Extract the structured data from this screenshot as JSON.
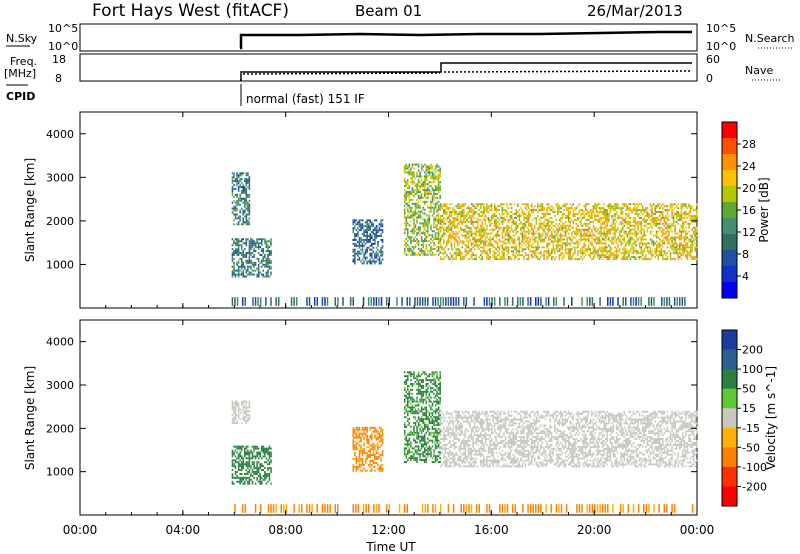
{
  "header": {
    "station": "Fort Hays West (fitACF)",
    "beam": "Beam 01",
    "date": "26/Mar/2013"
  },
  "top_panels": {
    "left_label_sky": "N.Sky",
    "left_ticks_sky": [
      "10^5",
      "10^0"
    ],
    "right_label_search": "N.Search",
    "right_ticks_search": [
      "10^5",
      "10^0"
    ],
    "left_label_freq_1": "Freq.",
    "left_label_freq_2": "[MHz]",
    "left_ticks_freq": [
      "18",
      "8"
    ],
    "right_label_nave": "Nave",
    "right_ticks_nave": [
      "60",
      "0"
    ],
    "cpid_label": "CPID",
    "cpid_text": "normal (fast) 151 IF"
  },
  "chart_data": [
    {
      "type": "heatmap",
      "title": "",
      "xlabel": "Time UT",
      "ylabel": "Slant Range [km]",
      "x_ticks": [
        "00:00",
        "04:00",
        "08:00",
        "12:00",
        "16:00",
        "20:00",
        "00:00"
      ],
      "y_ticks": [
        "1000",
        "2000",
        "3000",
        "4000"
      ],
      "ylim": [
        0,
        4500
      ],
      "colorbar_label": "Power [dB]",
      "colorbar_ticks": [
        "28",
        "24",
        "20",
        "16",
        "12",
        "8",
        "4"
      ],
      "colorbar_colors": [
        "#ff0000",
        "#ff5000",
        "#ff9000",
        "#ffc000",
        "#b0c800",
        "#60a830",
        "#409070",
        "#307060",
        "#2050a0",
        "#1030c8",
        "#0000ff"
      ],
      "echo_regions": [
        {
          "t_start": 5.9,
          "t_end": 7.4,
          "r_low": 700,
          "r_high": 1600,
          "level_db": 8
        },
        {
          "t_start": 5.9,
          "t_end": 6.6,
          "r_low": 1900,
          "r_high": 3100,
          "level_db": 8
        },
        {
          "t_start": 10.6,
          "t_end": 11.8,
          "r_low": 1000,
          "r_high": 2000,
          "level_db": 6
        },
        {
          "t_start": 12.6,
          "t_end": 14.0,
          "r_low": 1200,
          "r_high": 3300,
          "level_db": 14
        },
        {
          "t_start": 14.0,
          "t_end": 24.0,
          "r_low": 1100,
          "r_high": 2400,
          "level_db": 18
        }
      ]
    },
    {
      "type": "heatmap",
      "title": "",
      "xlabel": "Time UT",
      "ylabel": "Slant Range [km]",
      "x_ticks": [
        "00:00",
        "04:00",
        "08:00",
        "12:00",
        "16:00",
        "20:00",
        "00:00"
      ],
      "y_ticks": [
        "1000",
        "2000",
        "3000",
        "4000"
      ],
      "ylim": [
        0,
        4500
      ],
      "colorbar_label": "Velocity [m s^-1]",
      "colorbar_ticks": [
        "200",
        "100",
        "50",
        "15",
        "-15",
        "-50",
        "-100",
        "-200"
      ],
      "colorbar_colors": [
        "#1a3ca0",
        "#2a6090",
        "#2a8040",
        "#60c830",
        "#c8c8c0",
        "#ffb000",
        "#ff8000",
        "#ff3000",
        "#ff0000"
      ],
      "echo_regions": [
        {
          "t_start": 5.9,
          "t_end": 7.4,
          "r_low": 700,
          "r_high": 1600,
          "velocity": 60
        },
        {
          "t_start": 5.9,
          "t_end": 6.6,
          "r_low": 2100,
          "r_high": 2600,
          "velocity": 0
        },
        {
          "t_start": 10.6,
          "t_end": 11.8,
          "r_low": 1000,
          "r_high": 2000,
          "velocity": -40
        },
        {
          "t_start": 12.6,
          "t_end": 14.0,
          "r_low": 1200,
          "r_high": 3300,
          "velocity": 40
        },
        {
          "t_start": 14.0,
          "t_end": 24.0,
          "r_low": 1100,
          "r_high": 2400,
          "velocity": 0
        }
      ]
    }
  ]
}
